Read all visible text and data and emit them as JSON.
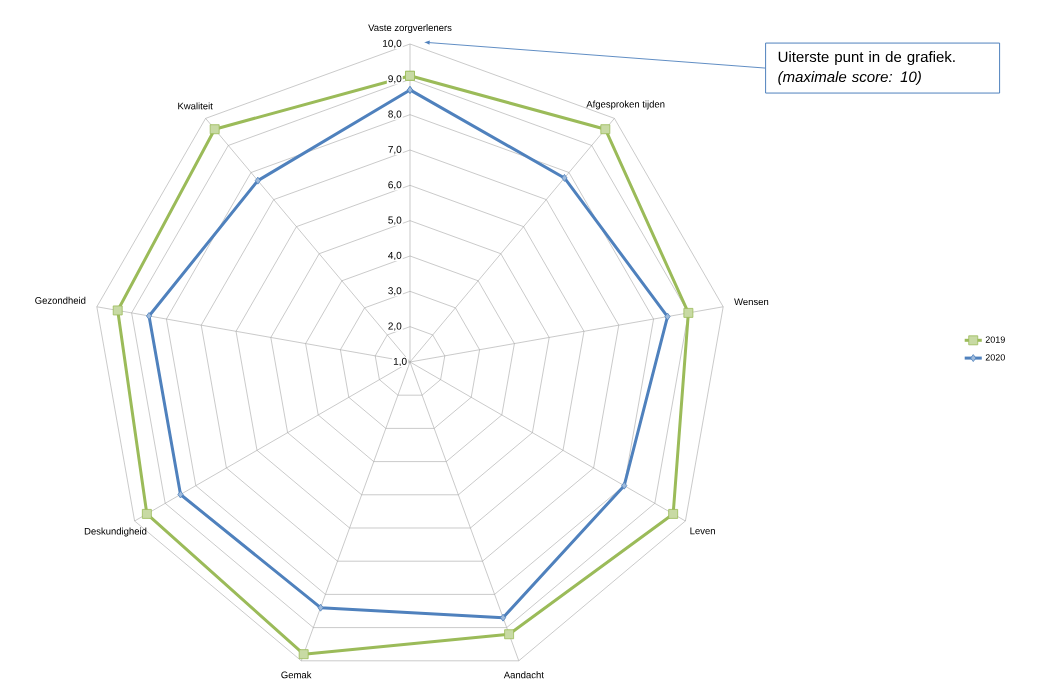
{
  "chart_data": {
    "type": "radar",
    "categories": [
      "Vaste zorgverleners",
      "Afgesproken tijden",
      "Wensen",
      "Leven",
      "Aandacht",
      "Gemak",
      "Deskundigheid",
      "Gezondheid",
      "Kwaliteit"
    ],
    "series": [
      {
        "name": "2019",
        "color": "#9bbb59",
        "marker": "square",
        "values": [
          9.1,
          9.6,
          9.0,
          9.6,
          9.2,
          9.8,
          9.6,
          9.4,
          9.6
        ]
      },
      {
        "name": "2020",
        "color": "#4f81bd",
        "marker": "diamond",
        "values": [
          8.7,
          7.8,
          8.4,
          8.0,
          8.7,
          8.4,
          8.5,
          8.5,
          7.7
        ]
      }
    ],
    "ylim": [
      1,
      10
    ],
    "yticks": [
      {
        "value": 1,
        "label": "1,0"
      },
      {
        "value": 2,
        "label": "2,0"
      },
      {
        "value": 3,
        "label": "3,0"
      },
      {
        "value": 4,
        "label": "4,0"
      },
      {
        "value": 5,
        "label": "5,0"
      },
      {
        "value": 6,
        "label": "6,0"
      },
      {
        "value": 7,
        "label": "7,0"
      },
      {
        "value": 8,
        "label": "8,0"
      },
      {
        "value": 9,
        "label": "9,0"
      },
      {
        "value": 10,
        "label": "10,0"
      }
    ],
    "grid": true,
    "legend": "right",
    "annotations": [
      "Uiterste punt in de grafiek. *(maximale score: 10)*"
    ]
  }
}
